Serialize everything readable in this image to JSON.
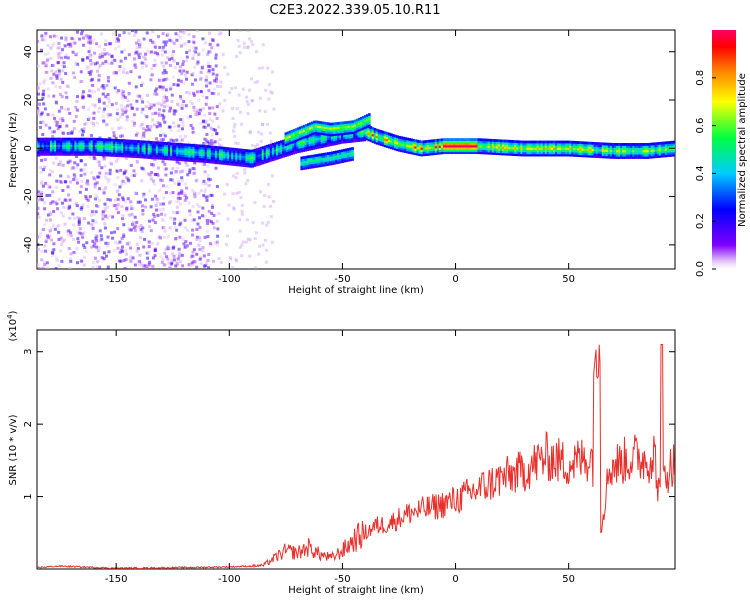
{
  "title": "C2E3.2022.339.05.10.R11",
  "chart_data": [
    {
      "type": "heatmap",
      "xlabel": "Height of straight line (km)",
      "ylabel": "Frequency (Hz)",
      "xlim": [
        -185,
        97
      ],
      "ylim": [
        -50,
        49
      ],
      "xticks": [
        -150,
        -100,
        -50,
        0,
        50
      ],
      "yticks": [
        -40,
        -20,
        0,
        20,
        40
      ],
      "colorbar": {
        "label": "Normalized spectral amplitude",
        "range": [
          0,
          1
        ],
        "ticks": [
          "0.0",
          "0.2",
          "0.4",
          "0.6",
          "0.8"
        ],
        "colormap": "rainbow"
      },
      "band_centerline": [
        [
          -185,
          1
        ],
        [
          -160,
          1
        ],
        [
          -140,
          0
        ],
        [
          -110,
          -2
        ],
        [
          -90,
          -4
        ],
        [
          -80,
          -1
        ],
        [
          -70,
          2
        ],
        [
          -60,
          4
        ],
        [
          -50,
          6
        ],
        [
          -40,
          7
        ],
        [
          -35,
          5
        ],
        [
          -25,
          2
        ],
        [
          -15,
          0
        ],
        [
          -5,
          1
        ],
        [
          0,
          1
        ],
        [
          10,
          1
        ],
        [
          30,
          0
        ],
        [
          50,
          0
        ],
        [
          70,
          -1
        ],
        [
          85,
          -1
        ],
        [
          97,
          0
        ]
      ],
      "secondary_band": [
        [
          -75,
          4
        ],
        [
          -62,
          9
        ],
        [
          -55,
          8
        ],
        [
          -45,
          9
        ],
        [
          -38,
          12
        ]
      ],
      "lower_branch": [
        [
          -68,
          -6
        ],
        [
          -55,
          -4
        ],
        [
          -45,
          -2
        ]
      ]
    },
    {
      "type": "line",
      "xlabel": "Height of straight line (km)",
      "ylabel": "SNR (10 * v/v)",
      "y_multiplier": "(x10^4)",
      "xlim": [
        -185,
        97
      ],
      "ylim": [
        0,
        3.3
      ],
      "xticks": [
        -150,
        -100,
        -50,
        0,
        50
      ],
      "yticks": [
        1,
        2,
        3
      ],
      "series": [
        {
          "color": "#e8302c",
          "x": [
            -185,
            -175,
            -150,
            -120,
            -100,
            -90,
            -85,
            -80,
            -75,
            -70,
            -65,
            -60,
            -55,
            -50,
            -45,
            -40,
            -35,
            -30,
            -25,
            -20,
            -10,
            0,
            10,
            20,
            30,
            35,
            40,
            45,
            50,
            55,
            60,
            62,
            64,
            68,
            75,
            80,
            85,
            88,
            90,
            93,
            97
          ],
          "values": [
            0.02,
            0.04,
            0.01,
            0.02,
            0.03,
            0.04,
            0.05,
            0.15,
            0.25,
            0.22,
            0.3,
            0.2,
            0.15,
            0.25,
            0.4,
            0.5,
            0.6,
            0.62,
            0.7,
            0.78,
            0.85,
            0.95,
            1.1,
            1.25,
            1.35,
            1.45,
            1.55,
            1.5,
            1.45,
            1.5,
            1.55,
            1.3,
            0.5,
            1.4,
            1.5,
            1.55,
            1.5,
            1.6,
            1.0,
            1.3,
            1.5
          ]
        }
      ]
    }
  ]
}
